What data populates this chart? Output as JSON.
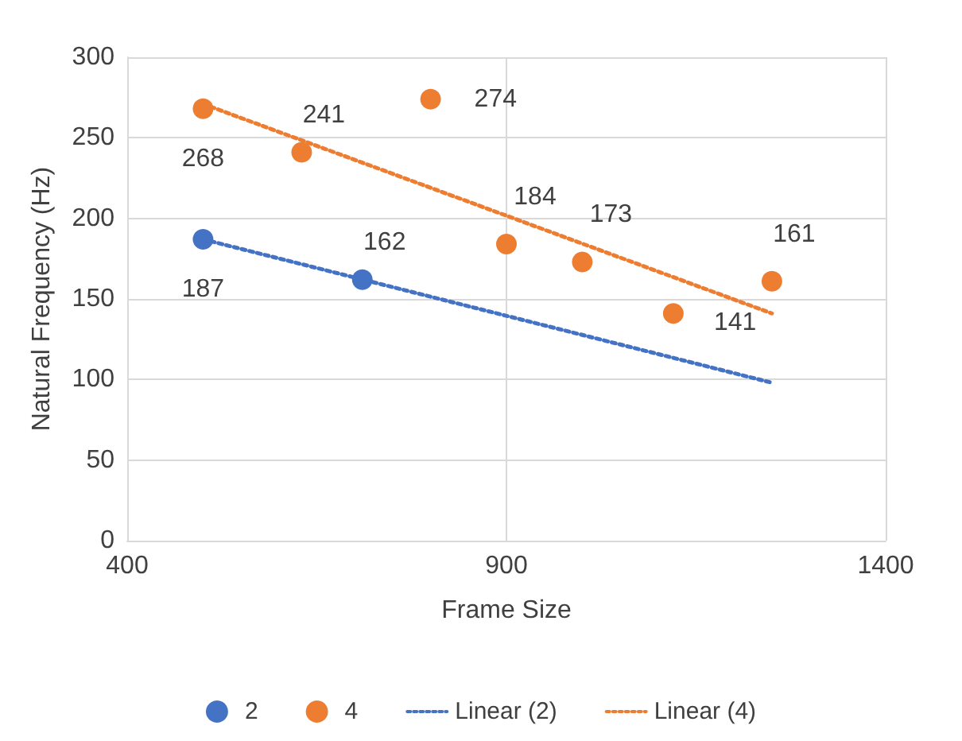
{
  "chart_data": {
    "type": "scatter",
    "xlabel": "Frame Size",
    "ylabel": "Natural Frequency (Hz)",
    "xlim": [
      400,
      1400
    ],
    "xticks": [
      400,
      900,
      {
        "value": 1400,
        "label": "1400"
      }
    ],
    "ylim": [
      0,
      300
    ],
    "yticks": [
      0,
      50,
      100,
      150,
      200,
      250,
      300
    ],
    "grid": true,
    "legend": "bottom",
    "marker": "circle",
    "series": [
      {
        "name": "2",
        "color": "#4472c4",
        "x": [
          500,
          710
        ],
        "values": [
          187,
          162
        ],
        "value_labels": [
          "187",
          "162"
        ]
      },
      {
        "name": "4",
        "color": "#ed7d31",
        "x": [
          500,
          630,
          800,
          900,
          1000,
          1120,
          1250
        ],
        "values": [
          268,
          241,
          274,
          184,
          173,
          141,
          161
        ],
        "value_labels": [
          "268",
          "241",
          "274",
          "184",
          "173",
          "141",
          "161"
        ]
      },
      {
        "name": "Linear (2)",
        "type": "line",
        "color": "#4472c4",
        "line_style": "dotted",
        "marker": "none",
        "x": [
          500,
          1250
        ],
        "values": [
          187,
          98
        ]
      },
      {
        "name": "Linear (4)",
        "type": "line",
        "color": "#ed7d31",
        "line_style": "dotted",
        "marker": "none",
        "x": [
          500,
          1250
        ],
        "values": [
          271,
          141
        ]
      }
    ]
  }
}
